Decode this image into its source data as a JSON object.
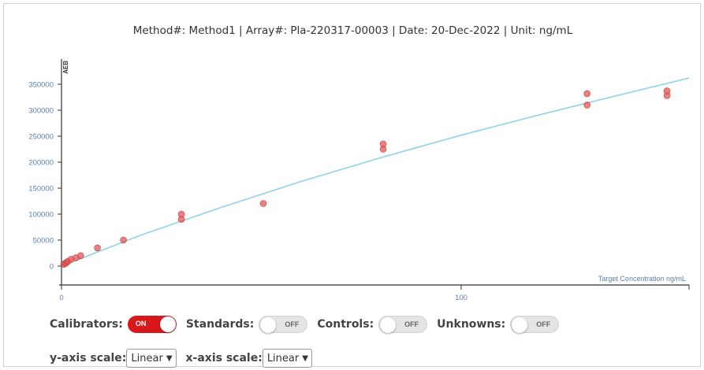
{
  "header": {
    "title": "Method#: Method1 | Array#: Pla-220317-00003 | Date: 20-Dec-2022 | Unit: ng/mL"
  },
  "chart_data": {
    "type": "scatter",
    "title": "Method#: Method1 | Array#: Pla-220317-00003 | Date: 20-Dec-2022 | Unit: ng/mL",
    "xlabel": "Target Concentration ng/mL",
    "ylabel": "AEB",
    "xlim": [
      0,
      157
    ],
    "ylim": [
      -10000,
      390000
    ],
    "x_ticks": [
      0,
      100
    ],
    "y_ticks": [
      0,
      50000,
      100000,
      150000,
      200000,
      250000,
      300000,
      350000
    ],
    "grid": false,
    "series": [
      {
        "type": "scatter",
        "color": "#e05555",
        "x": [
          0.6,
          0.9,
          1.2,
          1.6,
          2.4,
          3.6,
          4.8,
          9.0,
          15.5,
          30.0,
          30.0,
          50.5,
          80.5,
          80.5,
          131.5,
          131.5,
          151.5,
          151.5
        ],
        "y": [
          3500,
          5000,
          6500,
          9000,
          13000,
          16000,
          20000,
          35000,
          50000,
          90000,
          100000,
          120500,
          225000,
          235000,
          310000,
          332000,
          328000,
          337000
        ]
      },
      {
        "type": "line",
        "color": "#8fd3e8",
        "x": [
          0,
          20,
          40,
          60,
          80,
          100,
          120,
          140,
          158
        ],
        "y": [
          0,
          60000,
          113000,
          163000,
          209000,
          252000,
          292000,
          330000,
          362000
        ]
      }
    ]
  },
  "controls": {
    "calibrators_label": "Calibrators:",
    "calibrators_state": "ON",
    "standards_label": "Standards:",
    "standards_state": "OFF",
    "controls_label": "Controls:",
    "controls_state": "OFF",
    "unknowns_label": "Unknowns:",
    "unknowns_state": "OFF"
  },
  "scales": {
    "y_label": "y-axis scale:",
    "y_value": "Linear",
    "x_label": "x-axis scale:",
    "x_value": "Linear"
  },
  "colors": {
    "toggle_on": "#d7191c",
    "point": "#e05555",
    "fit_line": "#8fd3e8",
    "axis_text": "#5a7fa8"
  }
}
